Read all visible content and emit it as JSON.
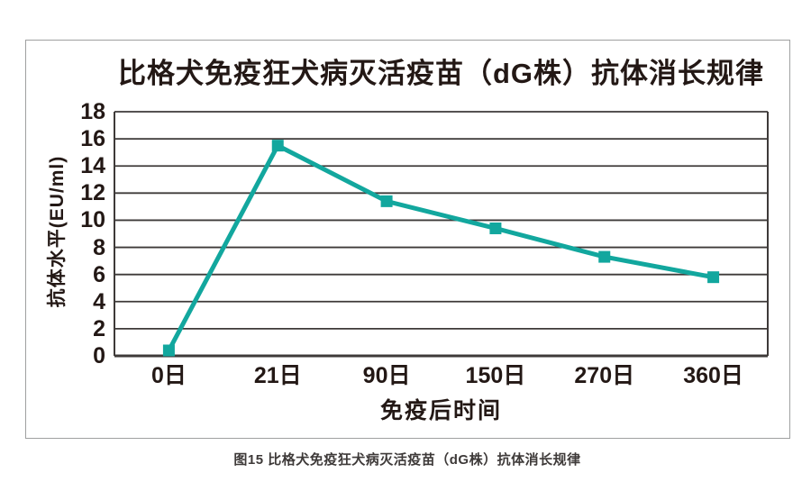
{
  "figure": {
    "caption": "图15 比格犬免疫狂犬病灭活疫苗（dG株）抗体消长规律"
  },
  "chart_data": {
    "type": "line",
    "title": "比格犬免疫狂犬病灭活疫苗（dG株）抗体消长规律",
    "categories": [
      "0日",
      "21日",
      "90日",
      "150日",
      "270日",
      "360日"
    ],
    "values": [
      0.4,
      15.5,
      11.4,
      9.4,
      7.3,
      5.8
    ],
    "series_name": "抗体水平",
    "xlabel": "免疫后时间",
    "ylabel": "抗体水平(EU/ml)",
    "ylim": [
      0,
      18
    ],
    "yticks": [
      0,
      2,
      4,
      6,
      8,
      10,
      12,
      14,
      16,
      18
    ],
    "grid": "horizontal",
    "legend": "none",
    "marker": "square",
    "colors": {
      "line": "#12a79e",
      "text": "#231815",
      "grid": "#3e3a39",
      "frame_border": "#9fa0a0",
      "caption_text": "#3e3a39",
      "background": "#ffffff"
    }
  }
}
